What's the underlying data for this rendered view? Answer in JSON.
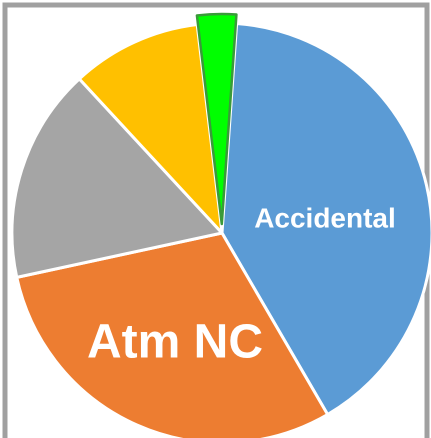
{
  "chart_data": {
    "type": "pie",
    "categories": [
      "Accidental",
      "Atm NC",
      null,
      null,
      null
    ],
    "values": [
      40.5,
      30,
      16.5,
      10,
      3
    ],
    "colors": [
      "#5b9bd5",
      "#ed7d31",
      "#a5a5a5",
      "#ffc000",
      "#00ff00"
    ]
  }
}
